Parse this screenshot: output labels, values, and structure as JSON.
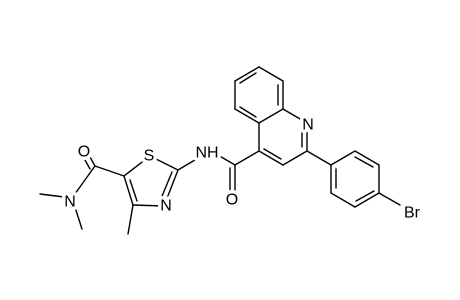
{
  "atoms": [
    {
      "label": "N"
    },
    {
      "label": "NH"
    },
    {
      "label": "O"
    },
    {
      "label": "S"
    },
    {
      "label": "N"
    },
    {
      "label": "O"
    },
    {
      "label": "N"
    },
    {
      "label": "Br"
    }
  ]
}
